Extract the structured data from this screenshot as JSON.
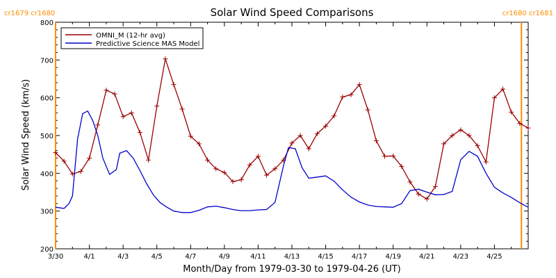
{
  "chart_data": {
    "type": "line",
    "title": "Solar Wind Speed Comparisons",
    "xlabel": "Month/Day from 1979-03-30 to 1979-04-26 (UT)",
    "ylabel": "Solar Wind Speed (km/s)",
    "ylim": [
      200,
      800
    ],
    "xlim": [
      0,
      28
    ],
    "yticks": [
      200,
      300,
      400,
      500,
      600,
      700,
      800
    ],
    "xticks": [
      {
        "x": 0,
        "label": "3/30"
      },
      {
        "x": 2,
        "label": "4/1"
      },
      {
        "x": 4,
        "label": "4/3"
      },
      {
        "x": 6,
        "label": "4/5"
      },
      {
        "x": 8,
        "label": "4/7"
      },
      {
        "x": 10,
        "label": "4/9"
      },
      {
        "x": 12,
        "label": "4/11"
      },
      {
        "x": 14,
        "label": "4/13"
      },
      {
        "x": 16,
        "label": "4/15"
      },
      {
        "x": 18,
        "label": "4/17"
      },
      {
        "x": 20,
        "label": "4/19"
      },
      {
        "x": 22,
        "label": "4/21"
      },
      {
        "x": 24,
        "label": "4/23"
      },
      {
        "x": 26,
        "label": "4/25"
      }
    ],
    "grid": false,
    "legend": "top-left",
    "series": [
      {
        "name": "OMNI_M (12-hr avg)",
        "color": "#990000",
        "marker": "plus",
        "x": [
          0,
          0.5,
          1,
          1.5,
          2,
          2.5,
          3,
          3.5,
          4,
          4.5,
          5,
          5.5,
          6,
          6.5,
          7,
          7.5,
          8,
          8.5,
          9,
          9.5,
          10,
          10.5,
          11,
          11.5,
          12,
          12.5,
          13,
          13.5,
          14,
          14.5,
          15,
          15.5,
          16,
          16.5,
          17,
          17.5,
          18,
          18.5,
          19,
          19.5,
          20,
          20.5,
          21,
          21.5,
          22,
          22.5,
          23,
          23.5,
          24,
          24.5,
          25,
          25.5,
          26,
          26.5,
          27,
          27.5,
          28
        ],
        "y": [
          455,
          432,
          398,
          405,
          440,
          528,
          620,
          610,
          550,
          560,
          508,
          435,
          578,
          703,
          635,
          570,
          498,
          478,
          435,
          412,
          402,
          378,
          383,
          422,
          445,
          395,
          412,
          435,
          480,
          500,
          465,
          505,
          525,
          552,
          602,
          608,
          635,
          568,
          486,
          445,
          446,
          418,
          377,
          345,
          332,
          365,
          478,
          500,
          515,
          500,
          473,
          430,
          600,
          623,
          562,
          532,
          520
        ]
      },
      {
        "name": "Predictive Science MAS Model",
        "color": "#0000cc",
        "marker": "none",
        "x": [
          0,
          0.5,
          0.8,
          1,
          1.3,
          1.6,
          1.9,
          2.2,
          2.5,
          2.8,
          3.2,
          3.6,
          3.8,
          4.2,
          4.6,
          5,
          5.4,
          5.8,
          6.2,
          6.6,
          7,
          7.5,
          8,
          8.5,
          9,
          9.5,
          10,
          10.5,
          11,
          11.5,
          12,
          12.5,
          13,
          13.5,
          13.8,
          14.2,
          14.6,
          15,
          15.5,
          16,
          16.5,
          17,
          17.5,
          18,
          18.5,
          19,
          19.5,
          20,
          20.5,
          21,
          21.5,
          22,
          22.5,
          23,
          23.5,
          24,
          24.5,
          25,
          25.5,
          26,
          26.5,
          27,
          27.5,
          28
        ],
        "y": [
          310,
          307,
          320,
          340,
          490,
          558,
          565,
          540,
          500,
          440,
          397,
          410,
          453,
          460,
          440,
          407,
          372,
          342,
          322,
          310,
          300,
          296,
          296,
          302,
          311,
          313,
          309,
          304,
          301,
          301,
          303,
          304,
          323,
          420,
          468,
          465,
          415,
          387,
          390,
          393,
          379,
          356,
          337,
          324,
          316,
          312,
          311,
          310,
          320,
          354,
          358,
          350,
          343,
          344,
          352,
          436,
          458,
          445,
          400,
          363,
          348,
          336,
          322,
          310
        ]
      }
    ],
    "annotations": [
      {
        "label": "cr1679 cr1680",
        "x": 0,
        "position": "top-left"
      },
      {
        "label": "cr1680 cr1681",
        "x": 27.6,
        "position": "top-right"
      }
    ],
    "vertical_lines": [
      {
        "x": 0,
        "color": "#ff8c00"
      },
      {
        "x": 27.6,
        "color": "#ff8c00"
      }
    ]
  }
}
